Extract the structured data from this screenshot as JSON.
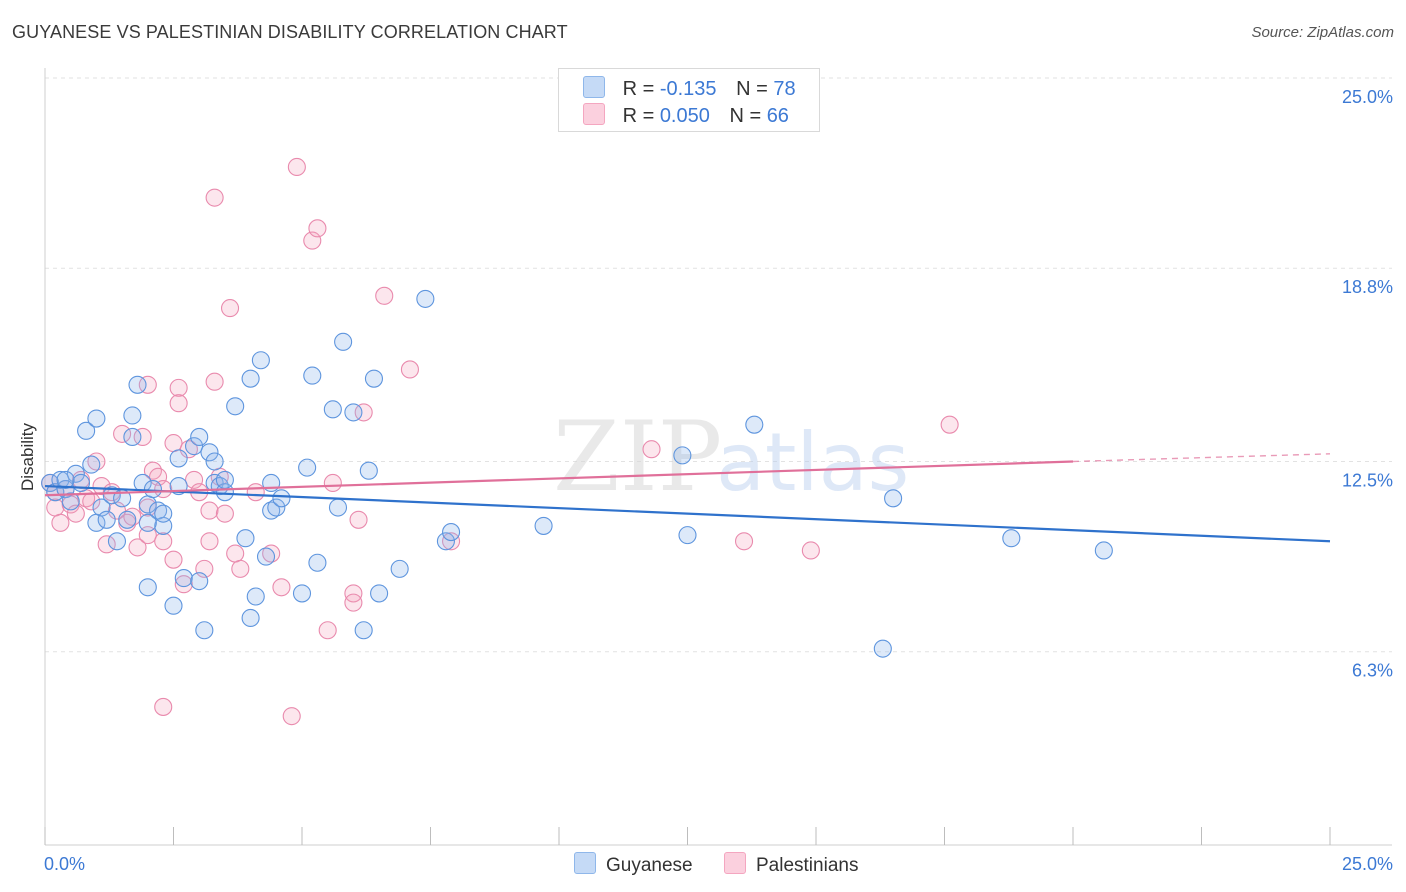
{
  "title": "GUYANESE VS PALESTINIAN DISABILITY CORRELATION CHART",
  "source": "Source: ZipAtlas.com",
  "legend": {
    "guyanese": {
      "r_label": "R =",
      "r_value": "-0.135",
      "n_label": "N =",
      "n_value": "78"
    },
    "palestinians": {
      "r_label": "R =",
      "r_value": "0.050",
      "n_label": "N =",
      "n_value": "66"
    }
  },
  "chart_data": {
    "type": "scatter",
    "title": "GUYANESE VS PALESTINIAN DISABILITY CORRELATION CHART",
    "xlabel": "",
    "ylabel": "Disability",
    "xlim": [
      0,
      25
    ],
    "ylim": [
      0,
      25
    ],
    "x_tick_labels": [
      "0.0%",
      "25.0%"
    ],
    "y_ticks": [
      6.3,
      12.5,
      18.8,
      25.0
    ],
    "y_tick_labels": [
      "6.3%",
      "12.5%",
      "18.8%",
      "25.0%"
    ],
    "grid": true,
    "legend_position": "top-center",
    "colors": {
      "guyanese": "#8fb7ea",
      "palestinians": "#f4a6c0",
      "guyanese_line": "#2f72cc",
      "palestinians_line": "#e0709a",
      "tick_label": "#3c79d4"
    },
    "series": [
      {
        "name": "Guyanese",
        "r": -0.135,
        "n": 78,
        "trend": {
          "x": [
            0,
            25
          ],
          "y": [
            11.7,
            9.9
          ]
        },
        "points": [
          [
            0.1,
            11.8
          ],
          [
            0.2,
            11.5
          ],
          [
            0.3,
            11.9
          ],
          [
            0.4,
            11.6
          ],
          [
            0.5,
            11.2
          ],
          [
            0.6,
            12.1
          ],
          [
            0.7,
            11.8
          ],
          [
            0.8,
            13.5
          ],
          [
            0.9,
            12.4
          ],
          [
            1.0,
            13.9
          ],
          [
            1.0,
            10.5
          ],
          [
            1.1,
            11.0
          ],
          [
            1.2,
            10.6
          ],
          [
            1.3,
            11.4
          ],
          [
            1.4,
            9.9
          ],
          [
            1.5,
            11.3
          ],
          [
            1.6,
            10.6
          ],
          [
            1.7,
            13.3
          ],
          [
            1.7,
            14.0
          ],
          [
            1.8,
            15.0
          ],
          [
            1.9,
            11.8
          ],
          [
            2.0,
            11.1
          ],
          [
            2.0,
            8.4
          ],
          [
            2.1,
            11.6
          ],
          [
            2.2,
            10.9
          ],
          [
            2.3,
            10.4
          ],
          [
            2.3,
            10.8
          ],
          [
            2.5,
            7.8
          ],
          [
            2.6,
            11.7
          ],
          [
            2.6,
            12.6
          ],
          [
            2.7,
            8.7
          ],
          [
            2.9,
            13.0
          ],
          [
            3.0,
            13.3
          ],
          [
            3.0,
            8.6
          ],
          [
            3.1,
            7.0
          ],
          [
            3.2,
            12.8
          ],
          [
            3.3,
            11.8
          ],
          [
            3.3,
            12.5
          ],
          [
            3.4,
            11.7
          ],
          [
            3.5,
            11.5
          ],
          [
            3.5,
            11.9
          ],
          [
            3.7,
            14.3
          ],
          [
            3.9,
            10.0
          ],
          [
            4.0,
            15.2
          ],
          [
            4.0,
            7.4
          ],
          [
            4.1,
            8.1
          ],
          [
            4.2,
            15.8
          ],
          [
            4.3,
            9.4
          ],
          [
            4.4,
            11.8
          ],
          [
            4.4,
            10.9
          ],
          [
            4.5,
            11.0
          ],
          [
            4.6,
            11.3
          ],
          [
            5.0,
            8.2
          ],
          [
            5.1,
            12.3
          ],
          [
            5.2,
            15.3
          ],
          [
            5.3,
            9.2
          ],
          [
            5.6,
            14.2
          ],
          [
            5.7,
            11.0
          ],
          [
            5.8,
            16.4
          ],
          [
            6.0,
            14.1
          ],
          [
            6.2,
            7.0
          ],
          [
            6.3,
            12.2
          ],
          [
            6.4,
            15.2
          ],
          [
            6.5,
            8.2
          ],
          [
            6.9,
            9.0
          ],
          [
            7.4,
            17.8
          ],
          [
            7.8,
            9.9
          ],
          [
            7.9,
            10.2
          ],
          [
            9.7,
            10.4
          ],
          [
            12.4,
            12.7
          ],
          [
            12.5,
            10.1
          ],
          [
            13.8,
            13.7
          ],
          [
            16.3,
            6.4
          ],
          [
            16.5,
            11.3
          ],
          [
            18.8,
            10.0
          ],
          [
            20.6,
            9.6
          ],
          [
            0.4,
            11.9
          ],
          [
            2.0,
            10.5
          ]
        ]
      },
      {
        "name": "Palestinians",
        "r": 0.05,
        "n": 66,
        "trend": {
          "x": [
            0,
            20.0
          ],
          "y": [
            11.4,
            12.5
          ]
        },
        "trend_dashed": {
          "x": [
            20.0,
            25
          ],
          "y": [
            12.5,
            12.75
          ]
        },
        "points": [
          [
            0.1,
            11.8
          ],
          [
            0.2,
            11.5
          ],
          [
            0.2,
            11.0
          ],
          [
            0.3,
            10.5
          ],
          [
            0.4,
            11.6
          ],
          [
            0.5,
            11.1
          ],
          [
            0.6,
            10.8
          ],
          [
            0.7,
            11.9
          ],
          [
            0.8,
            11.3
          ],
          [
            0.9,
            11.2
          ],
          [
            1.0,
            12.5
          ],
          [
            1.1,
            11.7
          ],
          [
            1.2,
            9.8
          ],
          [
            1.3,
            11.5
          ],
          [
            1.4,
            10.9
          ],
          [
            1.5,
            13.4
          ],
          [
            1.6,
            10.5
          ],
          [
            1.7,
            10.7
          ],
          [
            1.8,
            9.7
          ],
          [
            1.9,
            13.3
          ],
          [
            2.0,
            11.0
          ],
          [
            2.0,
            10.1
          ],
          [
            2.0,
            15.0
          ],
          [
            2.1,
            12.2
          ],
          [
            2.2,
            12.0
          ],
          [
            2.3,
            9.9
          ],
          [
            2.3,
            11.6
          ],
          [
            2.3,
            4.5
          ],
          [
            2.5,
            13.1
          ],
          [
            2.5,
            9.3
          ],
          [
            2.6,
            14.9
          ],
          [
            2.6,
            14.4
          ],
          [
            2.7,
            8.5
          ],
          [
            2.8,
            12.9
          ],
          [
            2.9,
            11.9
          ],
          [
            3.0,
            11.5
          ],
          [
            3.1,
            9.0
          ],
          [
            3.2,
            10.9
          ],
          [
            3.2,
            9.9
          ],
          [
            3.3,
            21.1
          ],
          [
            3.3,
            15.1
          ],
          [
            3.4,
            12.0
          ],
          [
            3.5,
            10.8
          ],
          [
            3.6,
            17.5
          ],
          [
            3.7,
            9.5
          ],
          [
            3.8,
            9.0
          ],
          [
            4.1,
            11.5
          ],
          [
            4.4,
            9.5
          ],
          [
            4.6,
            8.4
          ],
          [
            4.8,
            4.2
          ],
          [
            4.9,
            22.1
          ],
          [
            5.2,
            19.7
          ],
          [
            5.3,
            20.1
          ],
          [
            5.5,
            7.0
          ],
          [
            5.6,
            11.8
          ],
          [
            6.0,
            8.2
          ],
          [
            6.0,
            7.9
          ],
          [
            6.1,
            10.6
          ],
          [
            6.2,
            14.1
          ],
          [
            6.6,
            17.9
          ],
          [
            7.1,
            15.5
          ],
          [
            7.9,
            9.9
          ],
          [
            11.8,
            12.9
          ],
          [
            13.6,
            9.9
          ],
          [
            14.9,
            9.6
          ],
          [
            17.6,
            13.7
          ]
        ]
      }
    ]
  },
  "bottom_legend": [
    "Guyanese",
    "Palestinians"
  ],
  "watermark": {
    "zip": "ZIP",
    "atlas": "atlas"
  }
}
